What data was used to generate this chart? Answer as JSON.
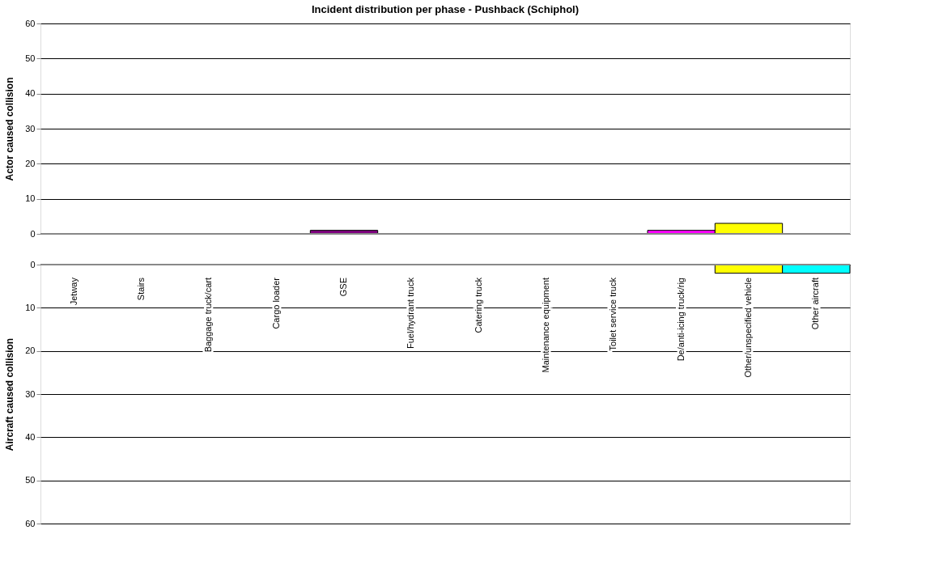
{
  "chart_data": [
    {
      "type": "bar",
      "title": "Incident distribution per phase - Pushback (Schiphol)",
      "ylabel": "Actor caused collision",
      "categories": [
        null,
        null,
        null,
        null,
        null,
        null,
        null,
        null,
        null,
        null,
        null,
        null
      ],
      "values": [
        null,
        null,
        null,
        null,
        1,
        null,
        null,
        null,
        null,
        1,
        3,
        null
      ],
      "colors": [
        null,
        null,
        null,
        null,
        "#800080",
        null,
        null,
        null,
        null,
        "#ff00ff",
        "#ffff00",
        null
      ],
      "ylim": [
        0,
        60
      ],
      "yticks": [
        0,
        10,
        20,
        30,
        40,
        50,
        60
      ],
      "grid": "y",
      "tick_labels": "y"
    },
    {
      "type": "bar",
      "ylabel": "Aircraft caused collision",
      "categories": [
        "Jetway",
        "Stairs",
        "Baggage truck/cart",
        "Cargo loader",
        "GSE",
        "Fuel/hydrant truck",
        "Catering truck",
        "Maintenance equipment",
        "Toilet service truck",
        "De/anti-icing truck/rig",
        "Other/unspecified vehicle",
        "Other aircraft"
      ],
      "values": [
        null,
        null,
        null,
        null,
        null,
        null,
        null,
        null,
        null,
        null,
        2,
        2
      ],
      "colors": [
        null,
        null,
        null,
        null,
        null,
        null,
        null,
        null,
        null,
        null,
        "#ffff00",
        "#00ffff"
      ],
      "ylim": [
        60,
        0
      ],
      "yticks": [
        0,
        10,
        20,
        30,
        40,
        50,
        60
      ],
      "grid": "y"
    }
  ]
}
